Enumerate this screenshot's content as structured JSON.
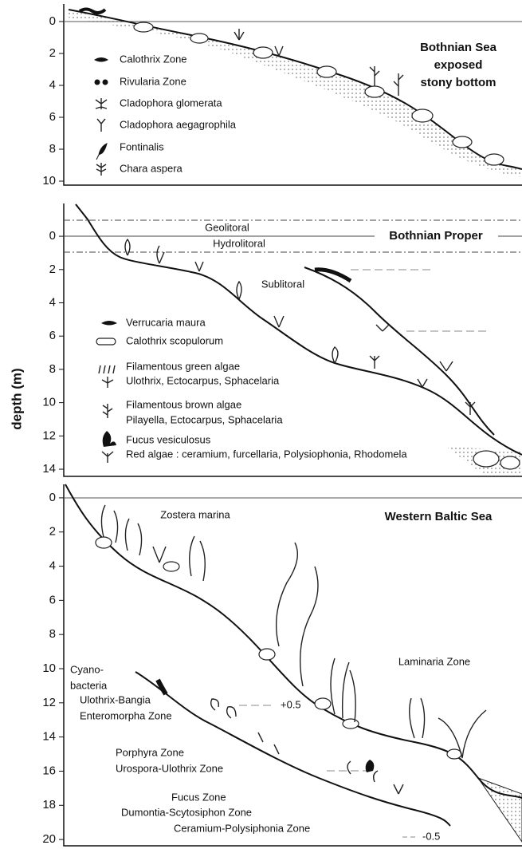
{
  "y_axis_label": "depth (m)",
  "panels": [
    {
      "title": [
        "Bothnian Sea",
        "exposed",
        "stony bottom"
      ],
      "ylim": [
        -1.1,
        10.25
      ],
      "yticks": [
        0,
        2,
        4,
        6,
        8,
        10
      ],
      "legend": [
        "Calothrix Zone",
        "Rivularia Zone",
        "Cladophora glomerata",
        "Cladophora aegagrophila",
        "Fontinalis",
        "Chara aspera"
      ]
    },
    {
      "title": [
        "Bothnian Proper"
      ],
      "ylim": [
        -1.97,
        14.43
      ],
      "yticks": [
        0,
        2,
        4,
        6,
        8,
        10,
        12,
        14
      ],
      "labels": [
        "Geolitoral",
        "Hydrolitoral",
        "Sublitoral"
      ],
      "legend": [
        "Verrucaria maura",
        "Calothrix scopulorum",
        "Filamentous green algae",
        "Ulothrix, Ectocarpus, Sphacelaria",
        "Filamentous brown algae",
        "Pilayella, Ectocarpus, Sphacelaria",
        "Fucus vesiculosus",
        "Red algae : ceramium, furcellaria, Polysiophonia, Rhodomela"
      ]
    },
    {
      "title": [
        "Western Baltic Sea"
      ],
      "ylim": [
        -0.79,
        20.37
      ],
      "yticks": [
        0,
        2,
        4,
        6,
        8,
        10,
        12,
        14,
        16,
        18,
        20
      ],
      "labels": [
        "Zostera marina",
        "Laminaria Zone",
        "Cyano-",
        "bacteria",
        "Ulothrix-Bangia",
        "Enteromorpha Zone",
        "+0.5",
        "Porphyra Zone",
        "Urospora-Ulothrix Zone",
        "Fucus Zone",
        "Dumontia-Scytosiphon Zone",
        "Ceramium-Polysiphonia Zone",
        "-0.5"
      ]
    }
  ]
}
